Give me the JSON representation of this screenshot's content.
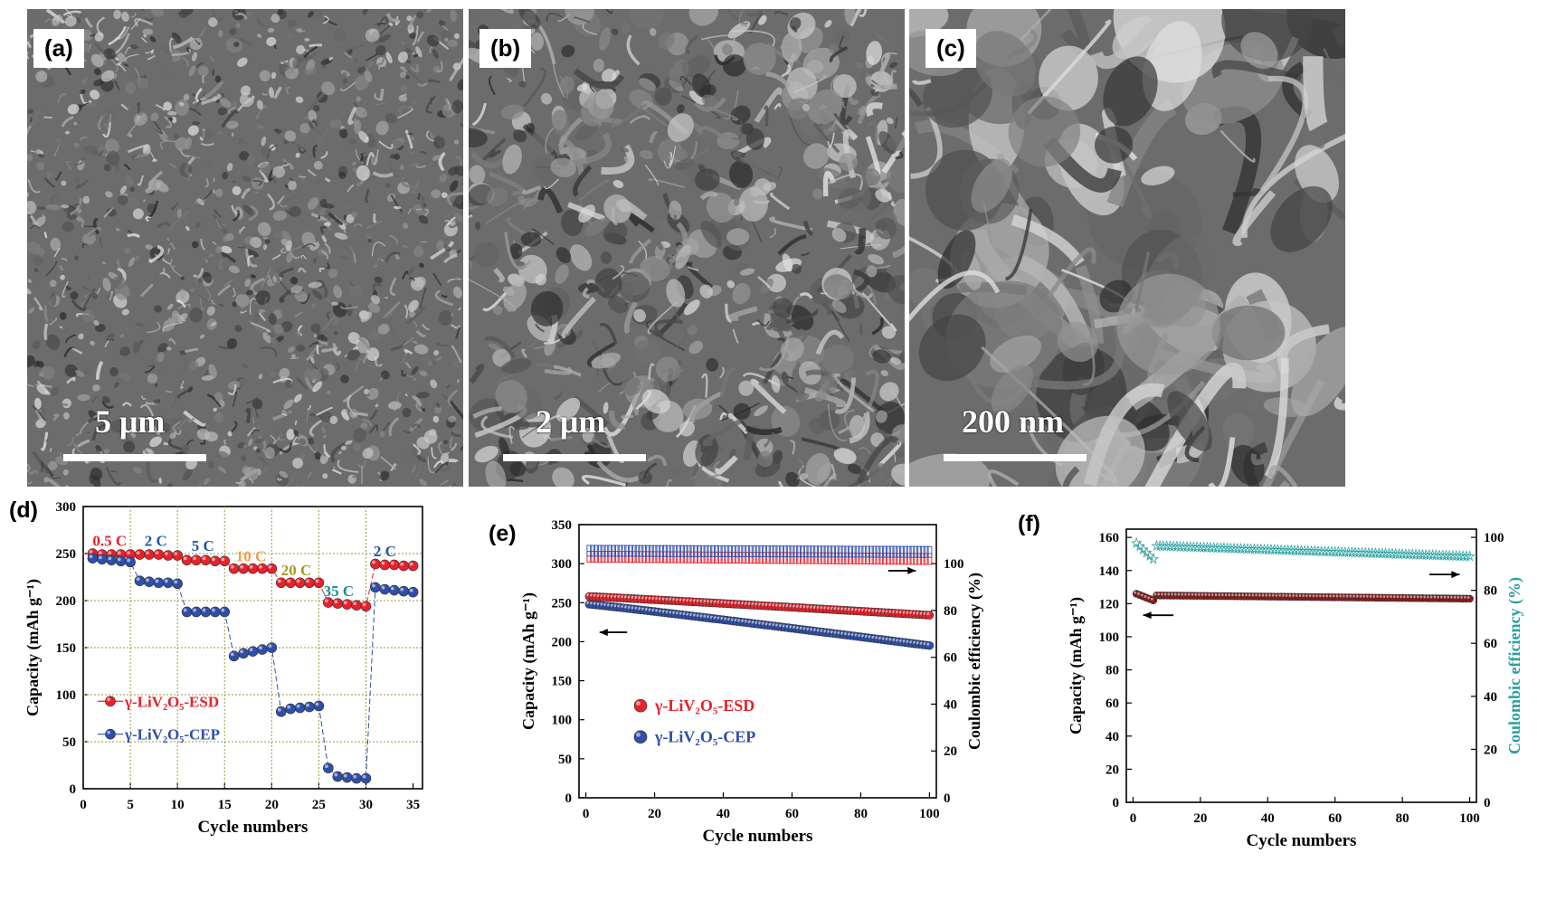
{
  "panels": {
    "a": {
      "label": "(a)",
      "scale": "5 μm"
    },
    "b": {
      "label": "(b)",
      "scale": "2 μm"
    },
    "c": {
      "label": "(c)",
      "scale": "200 nm"
    }
  },
  "chart_data": [
    {
      "id": "d",
      "panel_label": "(d)",
      "type": "scatter",
      "xlabel": "Cycle numbers",
      "ylabel": "Capacity (mAh g⁻¹)",
      "xlim": [
        0,
        36
      ],
      "ylim": [
        0,
        300
      ],
      "xticks": [
        0,
        5,
        10,
        15,
        20,
        25,
        30,
        35
      ],
      "yticks": [
        0,
        50,
        100,
        150,
        200,
        250,
        300
      ],
      "grid": "dotted olive lines at x=5,10,15,20,25,30 and y=50,100,150,200,250",
      "legend": "center-left",
      "rate_labels": [
        {
          "text": "0.5 C",
          "x": 1,
          "y": 258,
          "color": "#e8212b"
        },
        {
          "text": "2 C",
          "x": 6.5,
          "y": 258,
          "color": "#2457a8"
        },
        {
          "text": "5 C",
          "x": 11.5,
          "y": 253,
          "color": "#2457a8"
        },
        {
          "text": "10 C",
          "x": 16.2,
          "y": 242,
          "color": "#f0a050"
        },
        {
          "text": "20 C",
          "x": 21,
          "y": 227,
          "color": "#a89a20"
        },
        {
          "text": "35 C",
          "x": 25.5,
          "y": 205,
          "color": "#1e8a8a"
        },
        {
          "text": "2 C",
          "x": 30.8,
          "y": 247,
          "color": "#2457a8"
        }
      ],
      "series": [
        {
          "name": "γ-LiV₂O₅-ESD",
          "color": "#e8212b",
          "x": [
            1,
            2,
            3,
            4,
            5,
            6,
            7,
            8,
            9,
            10,
            11,
            12,
            13,
            14,
            15,
            16,
            17,
            18,
            19,
            20,
            21,
            22,
            23,
            24,
            25,
            26,
            27,
            28,
            29,
            30,
            31,
            32,
            33,
            34,
            35
          ],
          "y": [
            250,
            249,
            249,
            249,
            249,
            249,
            249,
            249,
            248,
            248,
            243,
            243,
            243,
            242,
            242,
            234,
            234,
            234,
            234,
            234,
            219,
            219,
            219,
            219,
            219,
            198,
            197,
            196,
            195,
            194,
            239,
            238,
            238,
            237,
            237
          ]
        },
        {
          "name": "γ-LiV₂O₅-CEP",
          "color": "#2f4ea8",
          "x": [
            1,
            2,
            3,
            4,
            5,
            6,
            7,
            8,
            9,
            10,
            11,
            12,
            13,
            14,
            15,
            16,
            17,
            18,
            19,
            20,
            21,
            22,
            23,
            24,
            25,
            26,
            27,
            28,
            29,
            30,
            31,
            32,
            33,
            34,
            35
          ],
          "y": [
            245,
            244,
            243,
            242,
            241,
            221,
            220,
            219,
            219,
            218,
            188,
            188,
            188,
            188,
            188,
            141,
            144,
            146,
            148,
            150,
            82,
            85,
            86,
            87,
            88,
            22,
            13,
            12,
            11,
            11,
            214,
            212,
            211,
            210,
            209
          ]
        }
      ]
    },
    {
      "id": "e",
      "panel_label": "(e)",
      "type": "scatter",
      "xlabel": "Cycle numbers",
      "ylabel": "Capacity (mAh g⁻¹)",
      "y2label": "Coulombic efficiency (%)",
      "xlim": [
        -2,
        102
      ],
      "ylim": [
        0,
        350
      ],
      "y2lim": [
        0,
        116.67
      ],
      "xticks": [
        0,
        20,
        40,
        60,
        80,
        100
      ],
      "yticks": [
        0,
        50,
        100,
        150,
        200,
        250,
        300,
        350
      ],
      "y2ticks": [
        0,
        20,
        40,
        60,
        80,
        100
      ],
      "legend": "center-left",
      "series": [
        {
          "name": "γ-LiV₂O₅-ESD",
          "color": "#e8212b",
          "axis": "left",
          "start": 258,
          "end": 234
        },
        {
          "name": "γ-LiV₂O₅-CEP",
          "color": "#2f4ea8",
          "axis": "left",
          "start": 248,
          "end": 195
        },
        {
          "name": "",
          "color": "#e8212b",
          "axis": "right",
          "marker": "open",
          "start": 103,
          "end": 102
        },
        {
          "name": "",
          "color": "#2f4ea8",
          "axis": "right",
          "marker": "open",
          "start": 105.5,
          "end": 105
        }
      ],
      "n_points": 100
    },
    {
      "id": "f",
      "panel_label": "(f)",
      "type": "scatter",
      "xlabel": "Cycle numbers",
      "ylabel": "Capacity (mAh g⁻¹)",
      "y2label": "Coulombic efficiency (%)",
      "xlim": [
        -2,
        102
      ],
      "ylim": [
        0,
        165
      ],
      "y2lim": [
        0,
        103.1
      ],
      "xticks": [
        0,
        20,
        40,
        60,
        80,
        100
      ],
      "yticks": [
        0,
        20,
        40,
        60,
        80,
        100,
        120,
        140,
        160
      ],
      "y2ticks": [
        0,
        20,
        40,
        60,
        80,
        100
      ],
      "series": [
        {
          "name": "",
          "color": "#8b1a1a",
          "axis": "left",
          "start": 126,
          "end": 123,
          "dip": [
            6,
            122
          ]
        },
        {
          "name": "",
          "color": "#2aa0a0",
          "axis": "right",
          "marker": "star",
          "start": 98,
          "end": 93,
          "dip": [
            6,
            92
          ]
        }
      ],
      "n_points": 100
    }
  ]
}
